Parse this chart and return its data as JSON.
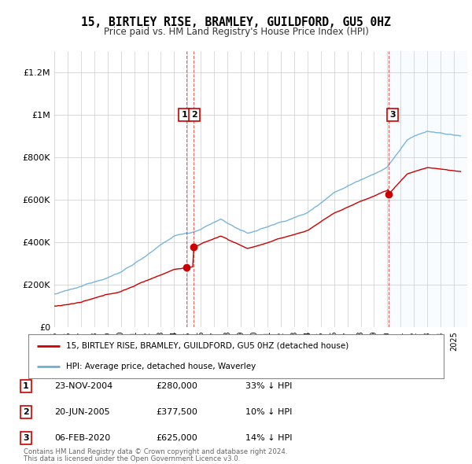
{
  "title": "15, BIRTLEY RISE, BRAMLEY, GUILDFORD, GU5 0HZ",
  "subtitle": "Price paid vs. HM Land Registry's House Price Index (HPI)",
  "ylim": [
    0,
    1300000
  ],
  "yticks": [
    0,
    200000,
    400000,
    600000,
    800000,
    1000000,
    1200000
  ],
  "ytick_labels": [
    "£0",
    "£200K",
    "£400K",
    "£600K",
    "£800K",
    "£1M",
    "£1.2M"
  ],
  "xlim_start": 1995.0,
  "xlim_end": 2026.0,
  "hpi_color": "#6baed6",
  "price_color": "#cc0000",
  "vline_color": "#cc0000",
  "shade_color": "#dceeff",
  "transaction_dates": [
    2004.9,
    2005.47,
    2020.1
  ],
  "transaction_prices": [
    280000,
    377500,
    625000
  ],
  "transaction_labels": [
    "1",
    "2",
    "3"
  ],
  "transaction_annotations": [
    {
      "label": "1",
      "date": "23-NOV-2004",
      "price": "£280,000",
      "pct": "33% ↓ HPI"
    },
    {
      "label": "2",
      "date": "20-JUN-2005",
      "price": "£377,500",
      "pct": "10% ↓ HPI"
    },
    {
      "label": "3",
      "date": "06-FEB-2020",
      "price": "£625,000",
      "pct": "14% ↓ HPI"
    }
  ],
  "legend_line1": "15, BIRTLEY RISE, BRAMLEY, GUILDFORD, GU5 0HZ (detached house)",
  "legend_line2": "HPI: Average price, detached house, Waverley",
  "footer_line1": "Contains HM Land Registry data © Crown copyright and database right 2024.",
  "footer_line2": "This data is licensed under the Open Government Licence v3.0.",
  "bg_color": "#f5f5f5",
  "plot_bg_color": "#ffffff"
}
